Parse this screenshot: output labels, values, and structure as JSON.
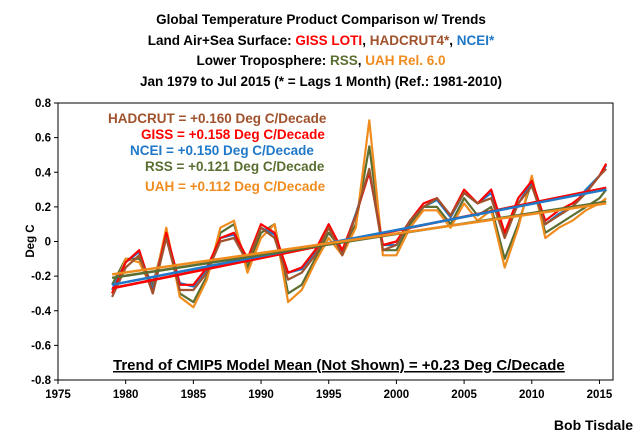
{
  "colors": {
    "giss": "#ff0000",
    "hadcrut": "#a0522d",
    "ncei": "#1f78c8",
    "rss": "#5a6e32",
    "uah": "#f08c1e",
    "black": "#000000"
  },
  "title": {
    "line1": "Global Temperature Product Comparison w/ Trends",
    "line2_prefix": "Land Air+Sea Surface: ",
    "line2_giss": "GISS LOTI",
    "line2_sep1": ", ",
    "line2_hadcrut": "HADCRUT4*",
    "line2_sep2": ", ",
    "line2_ncei": "NCEI*",
    "line3_prefix": "Lower Troposphere: ",
    "line3_rss": "RSS",
    "line3_sep": ", ",
    "line3_uah": "UAH Rel. 6.0",
    "line4": "Jan 1979 to Jul 2015 (* = Lags 1 Month) (Ref.: 1981-2010)"
  },
  "annotations": {
    "hadcrut": "HADCRUT = +0.160 Deg C/Decade",
    "giss": "GISS = +0.158 Deg C/Decade",
    "ncei": "NCEI = +0.150 Deg C/Decade",
    "rss": "RSS = +0.121 Deg C/Decade",
    "uah": "UAH = +0.112 Deg C/Decade",
    "cmip5": "Trend of CMIP5 Model Mean (Not Shown) = +0.23 Deg C/Decade"
  },
  "author": "Bob Tisdale",
  "chart_data": {
    "type": "line",
    "ylabel": "Deg C",
    "xlim": [
      1975,
      2016
    ],
    "ylim": [
      -0.8,
      0.8
    ],
    "x_ticks": [
      1975,
      1980,
      1985,
      1990,
      1995,
      2000,
      2005,
      2010,
      2015
    ],
    "y_ticks": [
      -0.8,
      -0.6,
      -0.4,
      -0.2,
      0,
      0.2,
      0.4,
      0.6,
      0.8
    ],
    "y_tick_labels": [
      "-0.8",
      "-0.6",
      "-0.4",
      "-0.2",
      "0",
      "0.2",
      "0.4",
      "0.6",
      "0.8"
    ],
    "x_range_of_data": [
      1979.0,
      2015.5
    ],
    "series": [
      {
        "name": "GISS LOTI",
        "key": "giss",
        "x": [
          1979.0,
          1980.0,
          1981.0,
          1982.0,
          1983.0,
          1984.0,
          1985.0,
          1986.0,
          1987.0,
          1988.0,
          1989.0,
          1990.0,
          1991.0,
          1992.0,
          1993.0,
          1994.0,
          1995.0,
          1996.0,
          1997.0,
          1998.0,
          1999.0,
          2000.0,
          2001.0,
          2002.0,
          2003.0,
          2004.0,
          2005.0,
          2006.0,
          2007.0,
          2008.0,
          2009.0,
          2010.0,
          2011.0,
          2012.0,
          2013.0,
          2014.0,
          2015.0,
          2015.5
        ],
        "values": [
          -0.3,
          -0.12,
          -0.05,
          -0.3,
          0.05,
          -0.25,
          -0.25,
          -0.15,
          0.02,
          0.05,
          -0.1,
          0.1,
          0.05,
          -0.18,
          -0.15,
          -0.05,
          0.1,
          -0.05,
          0.15,
          0.4,
          -0.02,
          0.0,
          0.12,
          0.22,
          0.25,
          0.15,
          0.3,
          0.22,
          0.3,
          0.05,
          0.25,
          0.35,
          0.12,
          0.18,
          0.22,
          0.28,
          0.38,
          0.45
        ]
      },
      {
        "name": "HADCRUT4",
        "key": "hadcrut",
        "x": [
          1979.0,
          1980.0,
          1981.0,
          1982.0,
          1983.0,
          1984.0,
          1985.0,
          1986.0,
          1987.0,
          1988.0,
          1989.0,
          1990.0,
          1991.0,
          1992.0,
          1993.0,
          1994.0,
          1995.0,
          1996.0,
          1997.0,
          1998.0,
          1999.0,
          2000.0,
          2001.0,
          2002.0,
          2003.0,
          2004.0,
          2005.0,
          2006.0,
          2007.0,
          2008.0,
          2009.0,
          2010.0,
          2011.0,
          2012.0,
          2013.0,
          2014.0,
          2015.0,
          2015.5
        ],
        "values": [
          -0.32,
          -0.15,
          -0.08,
          -0.3,
          0.02,
          -0.28,
          -0.28,
          -0.18,
          0.0,
          0.02,
          -0.12,
          0.08,
          0.02,
          -0.22,
          -0.18,
          -0.08,
          0.08,
          -0.08,
          0.15,
          0.42,
          -0.05,
          -0.02,
          0.12,
          0.2,
          0.25,
          0.15,
          0.28,
          0.22,
          0.25,
          0.02,
          0.22,
          0.32,
          0.1,
          0.15,
          0.2,
          0.28,
          0.38,
          0.42
        ]
      },
      {
        "name": "NCEI",
        "key": "ncei",
        "x": [
          1979.0,
          1980.0,
          1981.0,
          1982.0,
          1983.0,
          1984.0,
          1985.0,
          1986.0,
          1987.0,
          1988.0,
          1989.0,
          1990.0,
          1991.0,
          1992.0,
          1993.0,
          1994.0,
          1995.0,
          1996.0,
          1997.0,
          1998.0,
          1999.0,
          2000.0,
          2001.0,
          2002.0,
          2003.0,
          2004.0,
          2005.0,
          2006.0,
          2007.0,
          2008.0,
          2009.0,
          2010.0,
          2011.0,
          2012.0,
          2013.0,
          2014.0,
          2015.0,
          2015.5
        ],
        "values": [
          -0.28,
          -0.12,
          -0.06,
          -0.28,
          0.04,
          -0.24,
          -0.26,
          -0.16,
          0.02,
          0.04,
          -0.1,
          0.08,
          0.04,
          -0.18,
          -0.16,
          -0.06,
          0.08,
          -0.06,
          0.16,
          0.4,
          -0.02,
          -0.02,
          0.12,
          0.2,
          0.24,
          0.14,
          0.28,
          0.22,
          0.28,
          0.04,
          0.22,
          0.34,
          0.1,
          0.16,
          0.2,
          0.3,
          0.38,
          0.44
        ]
      },
      {
        "name": "RSS",
        "key": "rss",
        "x": [
          1979.0,
          1980.0,
          1981.0,
          1982.0,
          1983.0,
          1984.0,
          1985.0,
          1986.0,
          1987.0,
          1988.0,
          1989.0,
          1990.0,
          1991.0,
          1992.0,
          1993.0,
          1994.0,
          1995.0,
          1996.0,
          1997.0,
          1998.0,
          1999.0,
          2000.0,
          2001.0,
          2002.0,
          2003.0,
          2004.0,
          2005.0,
          2006.0,
          2007.0,
          2008.0,
          2009.0,
          2010.0,
          2011.0,
          2012.0,
          2013.0,
          2014.0,
          2015.0,
          2015.5
        ],
        "values": [
          -0.25,
          -0.1,
          -0.1,
          -0.25,
          0.05,
          -0.3,
          -0.35,
          -0.2,
          0.05,
          0.1,
          -0.15,
          0.05,
          0.1,
          -0.3,
          -0.25,
          -0.1,
          0.05,
          -0.05,
          0.1,
          0.55,
          -0.05,
          -0.05,
          0.1,
          0.2,
          0.2,
          0.1,
          0.25,
          0.15,
          0.2,
          -0.1,
          0.1,
          0.35,
          0.05,
          0.1,
          0.15,
          0.2,
          0.25,
          0.3
        ]
      },
      {
        "name": "UAH Rel. 6.0",
        "key": "uah",
        "x": [
          1979.0,
          1980.0,
          1981.0,
          1982.0,
          1983.0,
          1984.0,
          1985.0,
          1986.0,
          1987.0,
          1988.0,
          1989.0,
          1990.0,
          1991.0,
          1992.0,
          1993.0,
          1994.0,
          1995.0,
          1996.0,
          1997.0,
          1998.0,
          1999.0,
          2000.0,
          2001.0,
          2002.0,
          2003.0,
          2004.0,
          2005.0,
          2006.0,
          2007.0,
          2008.0,
          2009.0,
          2010.0,
          2011.0,
          2012.0,
          2013.0,
          2014.0,
          2015.0,
          2015.5
        ],
        "values": [
          -0.3,
          -0.1,
          -0.12,
          -0.28,
          0.08,
          -0.32,
          -0.38,
          -0.22,
          0.08,
          0.12,
          -0.18,
          0.02,
          0.1,
          -0.35,
          -0.28,
          -0.12,
          0.02,
          -0.08,
          0.08,
          0.7,
          -0.08,
          -0.08,
          0.08,
          0.18,
          0.18,
          0.08,
          0.22,
          0.12,
          0.18,
          -0.15,
          0.08,
          0.38,
          0.02,
          0.08,
          0.12,
          0.18,
          0.22,
          0.25
        ]
      }
    ],
    "trends": [
      {
        "name": "HADCRUT",
        "key": "hadcrut",
        "x": [
          1979.0,
          2015.5
        ],
        "values": [
          -0.27,
          0.31
        ]
      },
      {
        "name": "GISS",
        "key": "giss",
        "x": [
          1979.0,
          2015.5
        ],
        "values": [
          -0.27,
          0.31
        ]
      },
      {
        "name": "NCEI",
        "key": "ncei",
        "x": [
          1979.0,
          2015.5
        ],
        "values": [
          -0.25,
          0.3
        ]
      },
      {
        "name": "RSS",
        "key": "rss",
        "x": [
          1979.0,
          2015.5
        ],
        "values": [
          -0.21,
          0.23
        ]
      },
      {
        "name": "UAH",
        "key": "uah",
        "x": [
          1979.0,
          2015.5
        ],
        "values": [
          -0.19,
          0.22
        ]
      }
    ]
  }
}
